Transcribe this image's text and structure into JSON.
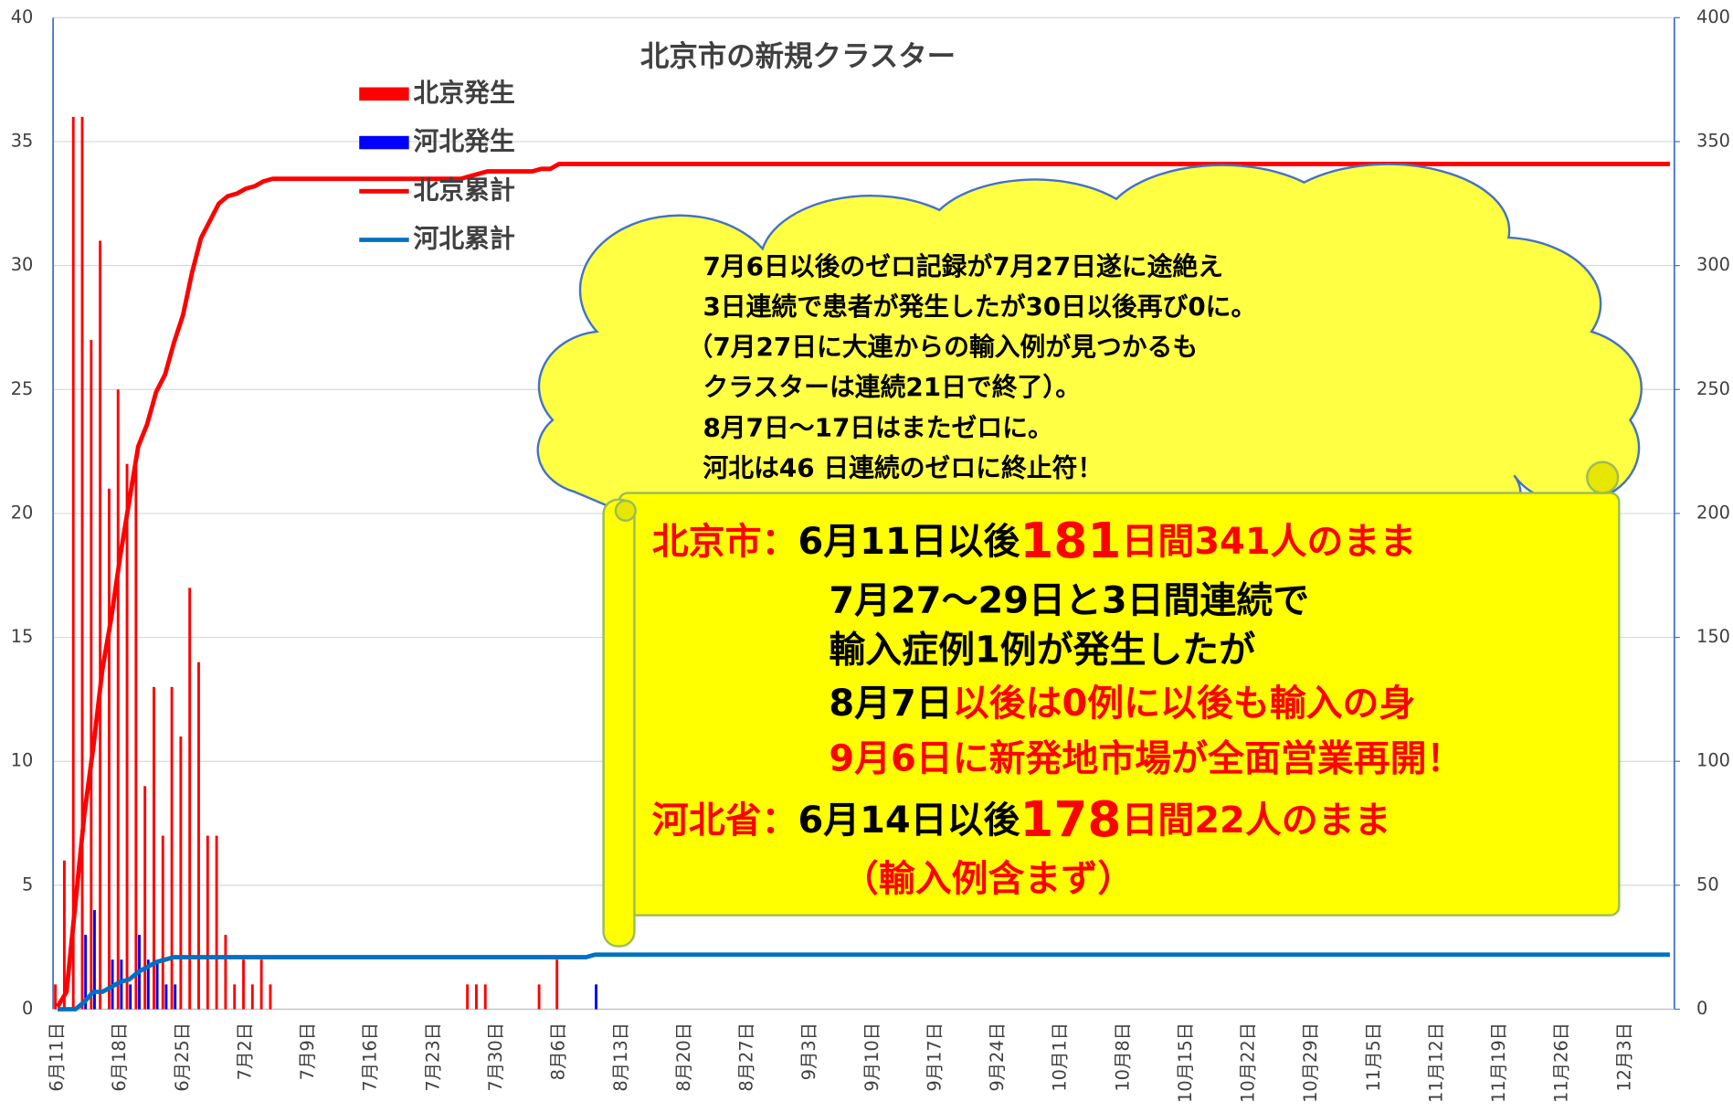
{
  "chart_data": {
    "type": "bar",
    "title": "北京市の新規クラスター",
    "categories": [
      "6月11日",
      null,
      null,
      null,
      null,
      null,
      null,
      "6月18日",
      null,
      null,
      null,
      null,
      null,
      null,
      "6月25日",
      null,
      null,
      null,
      null,
      null,
      null,
      "7月2日",
      null,
      null,
      null,
      null,
      null,
      null,
      "7月9日",
      null,
      null,
      null,
      null,
      null,
      null,
      "7月16日",
      null,
      null,
      null,
      null,
      null,
      null,
      "7月23日",
      null,
      null,
      null,
      null,
      null,
      null,
      "7月30日",
      null,
      null,
      null,
      null,
      null,
      null,
      "8月6日",
      null,
      null,
      null,
      null,
      null,
      null,
      "8月13日",
      null,
      null,
      null,
      null,
      null,
      null,
      "8月20日",
      null,
      null,
      null,
      null,
      null,
      null,
      "8月27日",
      null,
      null,
      null,
      null,
      null,
      null,
      "9月3日",
      null,
      null,
      null,
      null,
      null,
      null,
      "9月10日",
      null,
      null,
      null,
      null,
      null,
      null,
      "9月17日",
      null,
      null,
      null,
      null,
      null,
      null,
      "9月24日",
      null,
      null,
      null,
      null,
      null,
      null,
      "10月1日",
      null,
      null,
      null,
      null,
      null,
      null,
      "10月8日",
      null,
      null,
      null,
      null,
      null,
      null,
      "10月15日",
      null,
      null,
      null,
      null,
      null,
      null,
      "10月22日",
      null,
      null,
      null,
      null,
      null,
      null,
      "10月29日",
      null,
      null,
      null,
      null,
      null,
      null,
      "11月5日",
      null,
      null,
      null,
      null,
      null,
      null,
      "11月12日",
      null,
      null,
      null,
      null,
      null,
      null,
      "11月19日",
      null,
      null,
      null,
      null,
      null,
      null,
      "11月26日",
      null,
      null,
      null,
      null,
      null,
      null,
      "12月3日",
      null,
      null,
      null,
      null,
      null
    ],
    "series": [
      {
        "name": "北京発生",
        "type": "bar",
        "color": "#ff0000",
        "values": [
          1,
          6,
          36,
          36,
          27,
          31,
          21,
          25,
          22,
          22,
          9,
          13,
          7,
          13,
          11,
          17,
          14,
          7,
          7,
          3,
          1,
          2,
          1,
          2,
          1,
          0,
          0,
          0,
          0,
          0,
          0,
          0,
          0,
          0,
          0,
          0,
          0,
          0,
          0,
          0,
          0,
          0,
          0,
          0,
          0,
          0,
          1,
          1,
          1,
          0,
          0,
          0,
          0,
          0,
          1,
          0,
          2,
          0,
          0,
          0,
          0,
          0,
          0,
          0,
          0,
          0,
          0,
          0,
          0,
          0,
          0,
          0,
          0,
          0,
          0,
          0,
          0,
          0,
          0,
          0,
          0,
          0,
          0,
          0,
          0,
          0,
          0,
          0,
          0,
          0,
          0,
          0,
          0,
          0,
          0,
          0,
          0,
          0,
          0,
          0,
          0,
          0,
          0,
          0,
          0,
          0,
          0,
          0,
          0,
          0,
          0,
          0,
          0,
          0,
          0,
          0,
          0,
          0,
          0,
          0,
          0,
          0,
          0,
          0,
          0,
          0,
          0,
          0,
          0,
          0,
          0,
          0,
          0,
          0,
          0,
          0,
          0,
          0,
          0,
          0,
          0,
          0,
          0,
          0,
          0,
          0,
          0,
          0,
          0,
          0,
          0,
          0,
          0,
          0,
          0,
          0,
          0,
          0,
          0,
          0,
          0,
          0,
          0,
          0,
          0,
          0,
          0,
          0,
          0,
          0,
          0,
          0,
          0,
          0,
          0,
          0,
          0,
          0,
          0,
          0,
          0
        ]
      },
      {
        "name": "河北発生",
        "type": "bar",
        "color": "#0000ff",
        "values": [
          0,
          0,
          0,
          3,
          4,
          0,
          2,
          2,
          1,
          3,
          2,
          2,
          1,
          1,
          0,
          0,
          0,
          0,
          0,
          0,
          0,
          0,
          0,
          0,
          0,
          0,
          0,
          0,
          0,
          0,
          0,
          0,
          0,
          0,
          0,
          0,
          0,
          0,
          0,
          0,
          0,
          0,
          0,
          0,
          0,
          0,
          0,
          0,
          0,
          0,
          0,
          0,
          0,
          0,
          0,
          0,
          0,
          0,
          0,
          0,
          1,
          0,
          0,
          0,
          0,
          0,
          0,
          0,
          0,
          0,
          0,
          0,
          0,
          0,
          0,
          0,
          0,
          0,
          0,
          0,
          0,
          0,
          0,
          0,
          0,
          0,
          0,
          0,
          0,
          0,
          0,
          0,
          0,
          0,
          0,
          0,
          0,
          0,
          0,
          0,
          0,
          0,
          0,
          0,
          0,
          0,
          0,
          0,
          0,
          0,
          0,
          0,
          0,
          0,
          0,
          0,
          0,
          0,
          0,
          0,
          0,
          0,
          0,
          0,
          0,
          0,
          0,
          0,
          0,
          0,
          0,
          0,
          0,
          0,
          0,
          0,
          0,
          0,
          0,
          0,
          0,
          0,
          0,
          0,
          0,
          0,
          0,
          0,
          0,
          0,
          0,
          0,
          0,
          0,
          0,
          0,
          0,
          0,
          0,
          0,
          0,
          0,
          0,
          0,
          0,
          0,
          0,
          0,
          0,
          0,
          0,
          0,
          0,
          0,
          0,
          0,
          0,
          0,
          0,
          0,
          0
        ]
      },
      {
        "name": "北京累計",
        "type": "line",
        "axis": "y2",
        "color": "#ff0000",
        "values": [
          1,
          7,
          43,
          79,
          106,
          137,
          158,
          183,
          205,
          227,
          236,
          249,
          256,
          269,
          280,
          297,
          311,
          318,
          325,
          328,
          329,
          331,
          332,
          334,
          335,
          335,
          335,
          335,
          335,
          335,
          335,
          335,
          335,
          335,
          335,
          335,
          335,
          335,
          335,
          335,
          335,
          335,
          335,
          335,
          335,
          335,
          336,
          337,
          338,
          338,
          338,
          338,
          338,
          338,
          339,
          339,
          341,
          341,
          341,
          341,
          341,
          341,
          341,
          341,
          341,
          341,
          341,
          341,
          341,
          341,
          341,
          341,
          341,
          341,
          341,
          341,
          341,
          341,
          341,
          341,
          341,
          341,
          341,
          341,
          341,
          341,
          341,
          341,
          341,
          341,
          341,
          341,
          341,
          341,
          341,
          341,
          341,
          341,
          341,
          341,
          341,
          341,
          341,
          341,
          341,
          341,
          341,
          341,
          341,
          341,
          341,
          341,
          341,
          341,
          341,
          341,
          341,
          341,
          341,
          341,
          341,
          341,
          341,
          341,
          341,
          341,
          341,
          341,
          341,
          341,
          341,
          341,
          341,
          341,
          341,
          341,
          341,
          341,
          341,
          341,
          341,
          341,
          341,
          341,
          341,
          341,
          341,
          341,
          341,
          341,
          341,
          341,
          341,
          341,
          341,
          341,
          341,
          341,
          341,
          341,
          341,
          341,
          341,
          341,
          341,
          341,
          341,
          341,
          341,
          341,
          341,
          341,
          341,
          341,
          341,
          341,
          341,
          341,
          341,
          341,
          341
        ]
      },
      {
        "name": "河北累計",
        "type": "line",
        "axis": "y2",
        "color": "#0070c0",
        "values": [
          0,
          0,
          0,
          3,
          7,
          7,
          9,
          11,
          12,
          15,
          17,
          19,
          20,
          21,
          21,
          21,
          21,
          21,
          21,
          21,
          21,
          21,
          21,
          21,
          21,
          21,
          21,
          21,
          21,
          21,
          21,
          21,
          21,
          21,
          21,
          21,
          21,
          21,
          21,
          21,
          21,
          21,
          21,
          21,
          21,
          21,
          21,
          21,
          21,
          21,
          21,
          21,
          21,
          21,
          21,
          21,
          21,
          21,
          21,
          21,
          22,
          22,
          22,
          22,
          22,
          22,
          22,
          22,
          22,
          22,
          22,
          22,
          22,
          22,
          22,
          22,
          22,
          22,
          22,
          22,
          22,
          22,
          22,
          22,
          22,
          22,
          22,
          22,
          22,
          22,
          22,
          22,
          22,
          22,
          22,
          22,
          22,
          22,
          22,
          22,
          22,
          22,
          22,
          22,
          22,
          22,
          22,
          22,
          22,
          22,
          22,
          22,
          22,
          22,
          22,
          22,
          22,
          22,
          22,
          22,
          22,
          22,
          22,
          22,
          22,
          22,
          22,
          22,
          22,
          22,
          22,
          22,
          22,
          22,
          22,
          22,
          22,
          22,
          22,
          22,
          22,
          22,
          22,
          22,
          22,
          22,
          22,
          22,
          22,
          22,
          22,
          22,
          22,
          22,
          22,
          22,
          22,
          22,
          22,
          22,
          22,
          22,
          22,
          22,
          22,
          22,
          22,
          22,
          22,
          22,
          22,
          22,
          22,
          22,
          22,
          22,
          22,
          22,
          22,
          22,
          22
        ]
      }
    ],
    "ylim": [
      0,
      40
    ],
    "yticks": [
      0,
      5,
      10,
      15,
      20,
      25,
      30,
      35,
      40
    ],
    "y2lim": [
      0,
      400
    ],
    "y2ticks": [
      0,
      50,
      100,
      150,
      200,
      250,
      300,
      350,
      400
    ],
    "grid": true,
    "annotations": {
      "cloud": [
        "7月6日以後のゼロ記録が7月27日遂に途絶え",
        "3日連続で患者が発生したが30日以後再び0に。",
        "（7月27日に大連からの輸入例が見つかるも",
        "クラスターは連続21日で終了）。",
        "8月7日～17日はまたゼロに。",
        "河北は46 日連続のゼロに終止符！"
      ],
      "scroll": [
        [
          {
            "text": "北京市：",
            "color": "#ff0000"
          },
          {
            "text": "6月11日以後",
            "color": "#000000"
          },
          {
            "text": "181",
            "color": "#ff0000",
            "emphasis": true
          },
          {
            "text": "日間341人のまま",
            "color": "#ff0000"
          }
        ],
        [
          {
            "text": "7月27～29日と3日間連続で",
            "color": "#000000"
          }
        ],
        [
          {
            "text": "輸入症例1例が発生したが",
            "color": "#000000"
          }
        ],
        [
          {
            "text": "8月7日",
            "color": "#000000"
          },
          {
            "text": "以後は0例に以後も輸入の身",
            "color": "#ff0000"
          }
        ],
        [
          {
            "text": "9月6日に新発地市場が全面営業再開！",
            "color": "#ff0000"
          }
        ],
        [
          {
            "text": "河北省：",
            "color": "#ff0000"
          },
          {
            "text": "6月14日以後",
            "color": "#000000"
          },
          {
            "text": "178",
            "color": "#ff0000",
            "emphasis": true
          },
          {
            "text": "日間22人のまま",
            "color": "#ff0000"
          }
        ],
        [
          {
            "text": "（輸入例含まず）",
            "color": "#ff0000"
          }
        ]
      ]
    }
  }
}
